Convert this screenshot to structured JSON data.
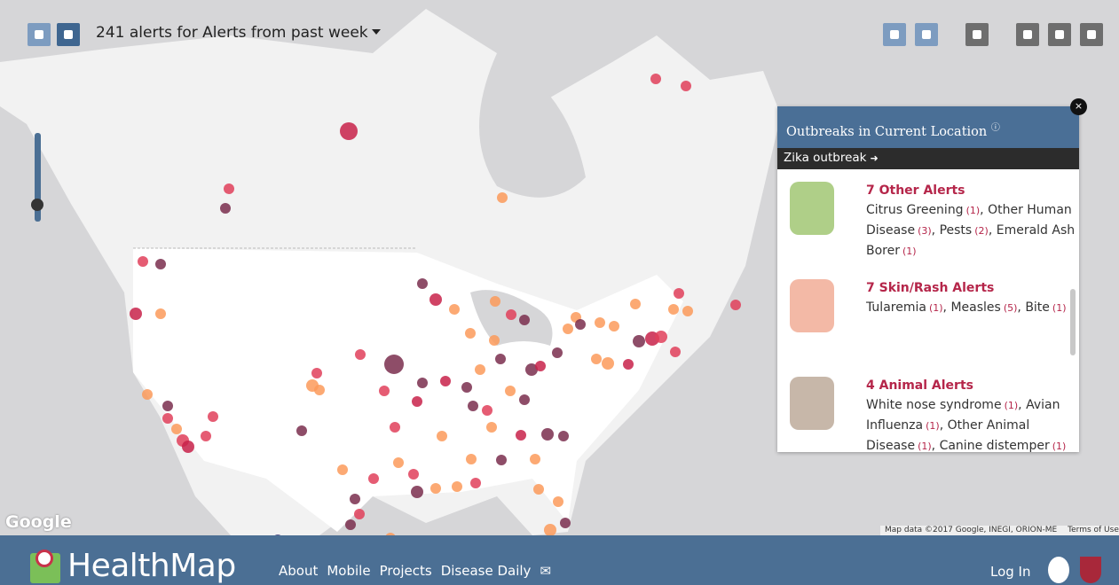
{
  "header": {
    "alerts_title": "241 alerts for Alerts from past week"
  },
  "panel": {
    "title": "Outbreaks in Current Location",
    "featured": "Zika outbreak",
    "groups": [
      {
        "heading": "7 Other Alerts",
        "items": [
          {
            "name": "Citrus Greening",
            "count": "(1)"
          },
          {
            "name": "Other Human Disease",
            "count": "(3)"
          },
          {
            "name": "Pests",
            "count": "(2)"
          },
          {
            "name": "Emerald Ash Borer",
            "count": "(1)"
          }
        ]
      },
      {
        "heading": "7 Skin/Rash Alerts",
        "items": [
          {
            "name": "Tularemia",
            "count": "(1)"
          },
          {
            "name": "Measles",
            "count": "(5)"
          },
          {
            "name": "Bite",
            "count": "(1)"
          }
        ]
      },
      {
        "heading": "4 Animal Alerts",
        "items": [
          {
            "name": "White nose syndrome",
            "count": "(1)"
          },
          {
            "name": "Avian Influenza",
            "count": "(1)"
          },
          {
            "name": "Other Animal Disease",
            "count": "(1)"
          },
          {
            "name": "Canine distemper",
            "count": "(1)"
          }
        ]
      }
    ]
  },
  "map": {
    "logo": "Google",
    "attribution": "Map data ©2017 Google, INEGI, ORION-ME",
    "terms": "Terms of Use"
  },
  "footer": {
    "brand": "HealthMap",
    "nav": [
      "About",
      "Mobile",
      "Projects",
      "Disease Daily"
    ],
    "login": "Log In"
  }
}
